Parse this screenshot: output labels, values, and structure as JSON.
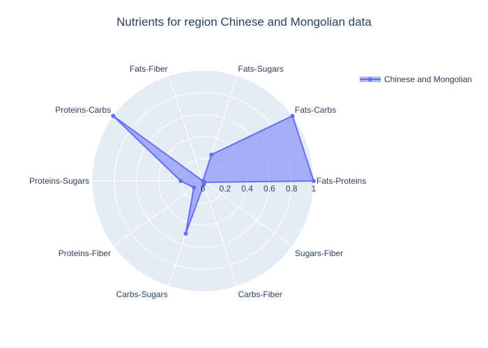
{
  "chart_data": {
    "type": "radar",
    "title": "Nutrients for region Chinese and Mongolian data",
    "categories": [
      "Fats-Proteins",
      "Fats-Carbs",
      "Fats-Sugars",
      "Fats-Fiber",
      "Proteins-Carbs",
      "Proteins-Sugars",
      "Proteins-Fiber",
      "Carbs-Sugars",
      "Carbs-Fiber",
      "Sugars-Fiber"
    ],
    "series": [
      {
        "name": "Chinese and Mongolian",
        "values": [
          1.0,
          1.0,
          0.25,
          0.0,
          1.0,
          0.2,
          0.1,
          0.5,
          0.03,
          0.02
        ]
      }
    ],
    "radial_ticks": [
      "0",
      "0.2",
      "0.4",
      "0.6",
      "0.8",
      "1"
    ],
    "rlim": [
      0,
      1
    ],
    "grid": true,
    "legend_position": "top-right",
    "colors": {
      "line": "#636efa",
      "fill": "rgba(99,110,250,0.5)",
      "polar_bg": "#e5ecf6",
      "grid": "#ffffff"
    }
  }
}
